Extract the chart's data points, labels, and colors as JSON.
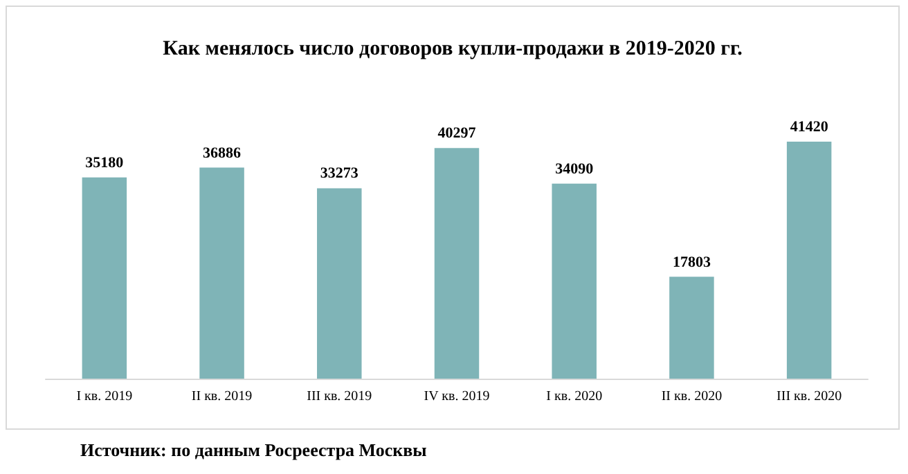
{
  "chart_data": {
    "type": "bar",
    "title": "Как менялось число договоров купли-продажи в 2019-2020 гг.",
    "categories": [
      "I кв. 2019",
      "II кв. 2019",
      "III кв. 2019",
      "IV кв. 2019",
      "I кв. 2020",
      "II кв. 2020",
      "III кв. 2020"
    ],
    "values": [
      35180,
      36886,
      33273,
      40297,
      34090,
      17803,
      41420
    ],
    "color": "#7fb4b7",
    "data_labels": true,
    "annotations": [
      "Источник: по данным Росреестра Москвы"
    ]
  }
}
